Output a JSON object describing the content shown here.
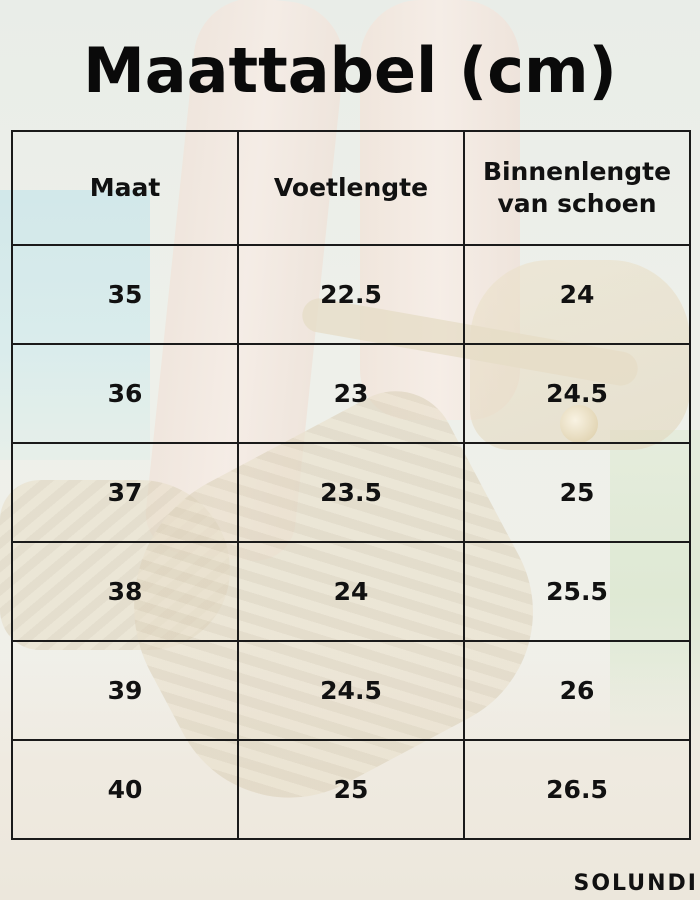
{
  "title": "Maattabel (cm)",
  "table": {
    "headers": [
      "Maat",
      "Voetlengte",
      "Binnenlengte van schoen"
    ],
    "rows": [
      [
        "35",
        "22.5",
        "24"
      ],
      [
        "36",
        "23",
        "24.5"
      ],
      [
        "37",
        "23.5",
        "25"
      ],
      [
        "38",
        "24",
        "25.5"
      ],
      [
        "39",
        "24.5",
        "26"
      ],
      [
        "40",
        "25",
        "26.5"
      ]
    ]
  },
  "brand": "SOLUNDI"
}
